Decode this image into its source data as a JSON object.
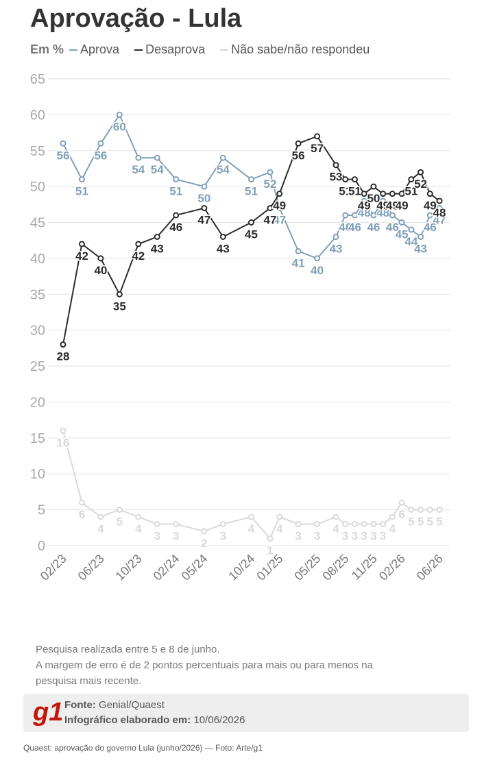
{
  "title": "Aprovação - Lula",
  "legend_prefix": "Em %",
  "chart_data": {
    "type": "line",
    "x": [
      "02/23",
      "04/23",
      "06/23",
      "08/23",
      "10/23",
      "12/23",
      "02/24",
      "05/24",
      "07/24",
      "10/24",
      "12/24",
      "01/25",
      "03/25",
      "05/25",
      "07/25",
      "08/25",
      "09/25",
      "10/25",
      "11/25",
      "12/25",
      "01/26",
      "02/26",
      "03/26",
      "04/26",
      "05/26",
      "06/26"
    ],
    "xticks": [
      "02/23",
      "06/23",
      "10/23",
      "02/24",
      "05/24",
      "10/24",
      "01/25",
      "05/25",
      "08/25",
      "11/25",
      "02/26",
      "06/26"
    ],
    "ylim": [
      0,
      65
    ],
    "yticks": [
      0,
      5,
      10,
      15,
      20,
      25,
      30,
      35,
      40,
      45,
      50,
      55,
      60,
      65
    ],
    "grid": true,
    "series": [
      {
        "name": "Aprova",
        "color": "#7f9fb8",
        "values": [
          56,
          51,
          56,
          60,
          54,
          54,
          51,
          50,
          54,
          51,
          52,
          47,
          41,
          40,
          43,
          46,
          46,
          48,
          46,
          48,
          46,
          45,
          44,
          43,
          46,
          47
        ]
      },
      {
        "name": "Desaprova",
        "color": "#2b2b2b",
        "values": [
          28,
          42,
          40,
          35,
          42,
          43,
          46,
          47,
          43,
          45,
          47,
          49,
          56,
          57,
          53,
          51,
          51,
          49,
          50,
          49,
          49,
          49,
          51,
          52,
          49,
          48
        ]
      },
      {
        "name": "Não sabe/não respondeu",
        "color": "#d9d9d9",
        "values": [
          16,
          6,
          4,
          5,
          4,
          3,
          3,
          2,
          3,
          4,
          1,
          4,
          3,
          3,
          4,
          3,
          3,
          3,
          3,
          3,
          4,
          6,
          5,
          5,
          5,
          5
        ]
      }
    ]
  },
  "notes": [
    "Pesquisa realizada entre 5 e 8 de junho.",
    "A margem de erro é de 2 pontos percentuais para mais ou para menos na",
    "pesquisa mais recente."
  ],
  "source": {
    "logo": "g1",
    "label": "Fonte:",
    "value": "Genial/Quaest",
    "date_label": "Infográfico elaborado em:",
    "date": "10/06/2026"
  },
  "caption": "Quaest: aprovação do governo Lula (junho/2026) — Foto: Arte/g1"
}
